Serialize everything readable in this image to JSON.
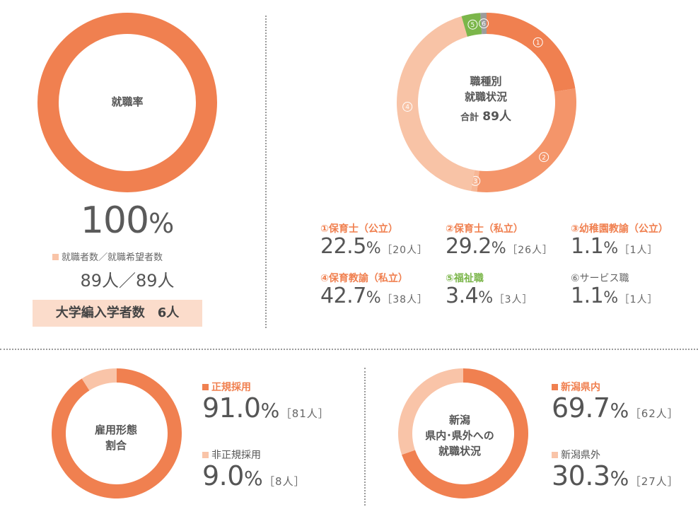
{
  "colors": {
    "accent": "#f08050",
    "c2": "#f4956a",
    "c3": "#f7b796",
    "c4": "#f8c3a6",
    "green": "#7bb64a",
    "gray": "#9c9c9c",
    "pale": "#f9d4c0",
    "box": "#fbdccb"
  },
  "employment_rate": {
    "center_label": "就職率",
    "value": "100",
    "unit": "%",
    "ratio_label": "就職者数／就職希望者数",
    "ratio_value": "89人／89人",
    "transfer": "大学編入学者数　6人"
  },
  "job_type": {
    "center_line1": "職種別",
    "center_line2": "就職状況",
    "total_label": "合計",
    "total_value": "89人"
  },
  "employment_form": {
    "center_line1": "雇用形態",
    "center_line2": "割合"
  },
  "niigata": {
    "center_line1": "新潟",
    "center_line2": "県内･県外への",
    "center_line3": "就職状況"
  },
  "chart_data": [
    {
      "type": "pie",
      "title": "就職率",
      "categories": [
        "就職率"
      ],
      "values": [
        100
      ]
    },
    {
      "type": "pie",
      "title": "職種別就職状況",
      "categories": [
        "①保育士（公立）",
        "②保育士（私立）",
        "③幼稚園教諭（公立）",
        "④保育教諭（私立）",
        "⑤福祉職",
        "⑥サービス職"
      ],
      "badges": [
        "1",
        "2",
        "3",
        "4",
        "5",
        "6"
      ],
      "values": [
        22.5,
        29.2,
        1.1,
        42.7,
        3.4,
        1.1
      ],
      "value_labels": [
        "22.5",
        "29.2",
        "1.1",
        "42.7",
        "3.4",
        "1.1"
      ],
      "counts": [
        "［20人］",
        "［26人］",
        "［1人］",
        "［38人］",
        "［3人］",
        "［1人］"
      ],
      "colors": [
        "#f08050",
        "#f4956a",
        "#f7b796",
        "#f8c3a6",
        "#7bb64a",
        "#9c9c9c"
      ]
    },
    {
      "type": "pie",
      "title": "雇用形態割合",
      "categories": [
        "正規採用",
        "非正規採用"
      ],
      "values": [
        91.0,
        9.0
      ],
      "value_labels": [
        "91.0",
        "9.0"
      ],
      "counts": [
        "［81人］",
        "［8人］"
      ],
      "colors": [
        "#f08050",
        "#f9c4a8"
      ]
    },
    {
      "type": "pie",
      "title": "新潟県内･県外への就職状況",
      "categories": [
        "新潟県内",
        "新潟県外"
      ],
      "values": [
        69.7,
        30.3
      ],
      "value_labels": [
        "69.7",
        "30.3"
      ],
      "counts": [
        "［62人］",
        "［27人］"
      ],
      "colors": [
        "#f08050",
        "#f9c4a8"
      ]
    }
  ]
}
